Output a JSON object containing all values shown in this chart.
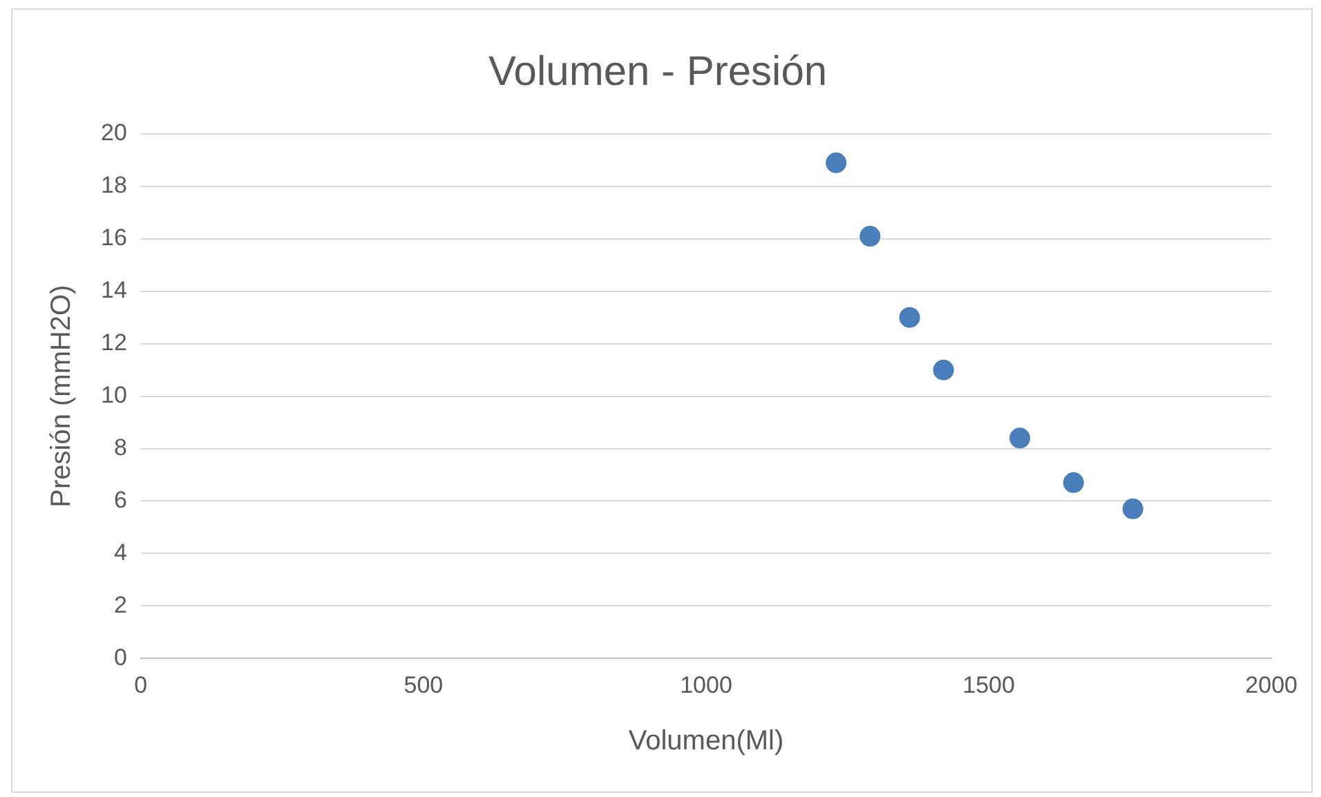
{
  "chart_data": {
    "type": "scatter",
    "title": "Volumen - Presión",
    "xlabel": "Volumen(Ml)",
    "ylabel": "Presión (mmH2O)",
    "x": [
      1230,
      1290,
      1360,
      1420,
      1555,
      1650,
      1755
    ],
    "series": [
      {
        "color": "#4a7ebb",
        "values": [
          18.9,
          16.1,
          13.0,
          11.0,
          8.4,
          6.7,
          5.7
        ]
      }
    ],
    "xlim": [
      0,
      2000
    ],
    "xticks": [
      0,
      500,
      1000,
      1500,
      2000
    ],
    "ylim": [
      0,
      20
    ],
    "yticks": [
      0,
      2,
      4,
      6,
      8,
      10,
      12,
      14,
      16,
      18,
      20
    ],
    "grid": "y",
    "legend": false,
    "marker": "circle"
  }
}
